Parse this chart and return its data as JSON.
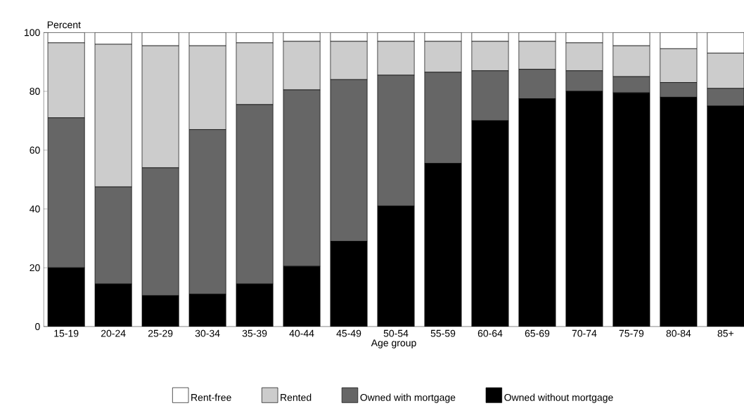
{
  "chart_data": {
    "type": "bar",
    "stacked": true,
    "ylabel": "Percent",
    "xlabel": "Age group",
    "categories": [
      "15-19",
      "20-24",
      "25-29",
      "30-34",
      "35-39",
      "40-44",
      "45-49",
      "50-54",
      "55-59",
      "60-64",
      "65-69",
      "70-74",
      "75-79",
      "80-84",
      "85+"
    ],
    "series": [
      {
        "name": "Owned without mortgage",
        "color": "#000000",
        "values": [
          20,
          14.5,
          10.5,
          11,
          14.5,
          20.5,
          29,
          41,
          55.5,
          70,
          77.5,
          80,
          79.5,
          78,
          75
        ]
      },
      {
        "name": "Owned with mortgage",
        "color": "#666666",
        "values": [
          51,
          33,
          43.5,
          56,
          61,
          60,
          55,
          44.5,
          31,
          17,
          10,
          7,
          5.5,
          5,
          6
        ]
      },
      {
        "name": "Rented",
        "color": "#cccccc",
        "values": [
          25.5,
          48.5,
          41.5,
          28.5,
          21,
          16.5,
          13,
          11.5,
          10.5,
          10,
          9.5,
          9.5,
          10.5,
          11.5,
          12
        ]
      },
      {
        "name": "Rent-free",
        "color": "#ffffff",
        "values": [
          3.5,
          4,
          4.5,
          4.5,
          3.5,
          3,
          3,
          3,
          3,
          3,
          3,
          3.5,
          4.5,
          5.5,
          7
        ]
      }
    ],
    "ylim": [
      0,
      100
    ],
    "yticks": [
      0,
      20,
      40,
      60,
      80,
      100
    ],
    "legend": "bottom"
  }
}
